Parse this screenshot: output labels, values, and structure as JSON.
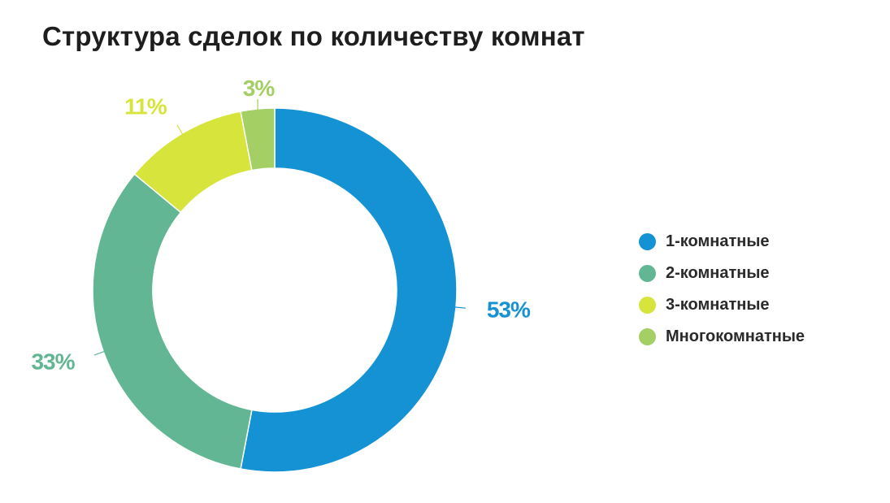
{
  "chart_data": {
    "type": "pie",
    "title": "Структура сделок по количеству комнат",
    "categories": [
      "1-комнатные",
      "2-комнатные",
      "3-комнатные",
      "Многокомнатные"
    ],
    "values": [
      53,
      33,
      11,
      3
    ],
    "labels": [
      "53%",
      "33%",
      "11%",
      "3%"
    ],
    "colors": [
      "#1592d3",
      "#62b694",
      "#d6e43c",
      "#a3cf65"
    ],
    "legend_position": "right",
    "style": "donut"
  }
}
